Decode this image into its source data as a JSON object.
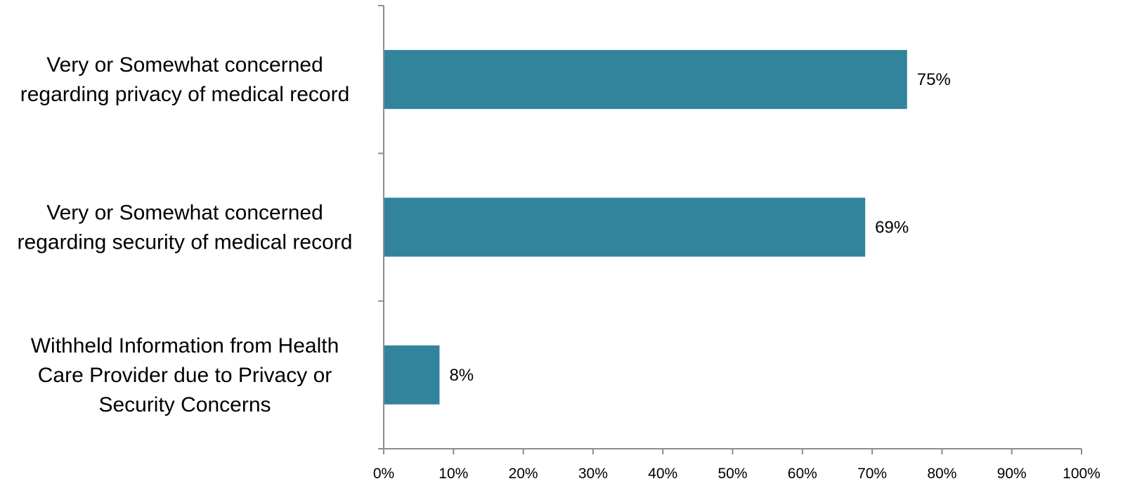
{
  "chart_data": {
    "type": "bar",
    "orientation": "horizontal",
    "categories": [
      [
        "Very or Somewhat concerned",
        "regarding privacy of medical record"
      ],
      [
        "Very or Somewhat concerned",
        "regarding security of medical record"
      ],
      [
        "Withheld Information from Health",
        "Care Provider due to Privacy or",
        "Security Concerns"
      ]
    ],
    "values": [
      75,
      69,
      8
    ],
    "data_labels": [
      "75%",
      "69%",
      "8%"
    ],
    "xlim": [
      0,
      100
    ],
    "x_ticks": [
      0,
      10,
      20,
      30,
      40,
      50,
      60,
      70,
      80,
      90,
      100
    ],
    "x_tick_labels": [
      "0%",
      "10%",
      "20%",
      "30%",
      "40%",
      "50%",
      "60%",
      "70%",
      "80%",
      "90%",
      "100%"
    ],
    "bar_color": "#31849b",
    "grid": false,
    "legend": "none",
    "title": "",
    "xlabel": "",
    "ylabel": ""
  }
}
